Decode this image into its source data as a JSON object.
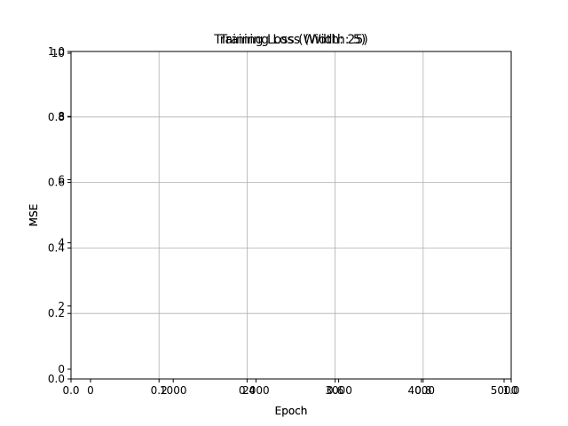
{
  "chart_data": {
    "type": "line",
    "note_overlay": "two overlapping axes layers are drawn in the same frame",
    "layers": [
      {
        "title": "Training Loss (Width: 5)",
        "xlabel": "Epoch",
        "ylabel": "MSE",
        "xlim": [
          0,
          5000
        ],
        "ylim": [
          0,
          10
        ],
        "x_ticks": [
          "0",
          "1000",
          "2000",
          "3000",
          "4000",
          "5000"
        ],
        "y_ticks": [
          "0",
          "2",
          "4",
          "6",
          "8",
          "10"
        ],
        "series": []
      },
      {
        "title": "Training Loss (Width: 25)",
        "xlabel": "Epoch",
        "ylabel": "MSE",
        "xlim": [
          0.0,
          1.0
        ],
        "ylim": [
          0.0,
          1.0
        ],
        "x_ticks": [
          "0.0",
          "0.2",
          "0.4",
          "0.6",
          "0.8",
          "1.0"
        ],
        "y_ticks": [
          "0.0",
          "0.2",
          "0.4",
          "0.6",
          "0.8",
          "1.0"
        ],
        "series": []
      }
    ],
    "grid": true
  },
  "colors": {
    "grid": "#b0b0b0",
    "frame": "#000000",
    "text": "#000000",
    "background": "#ffffff"
  }
}
